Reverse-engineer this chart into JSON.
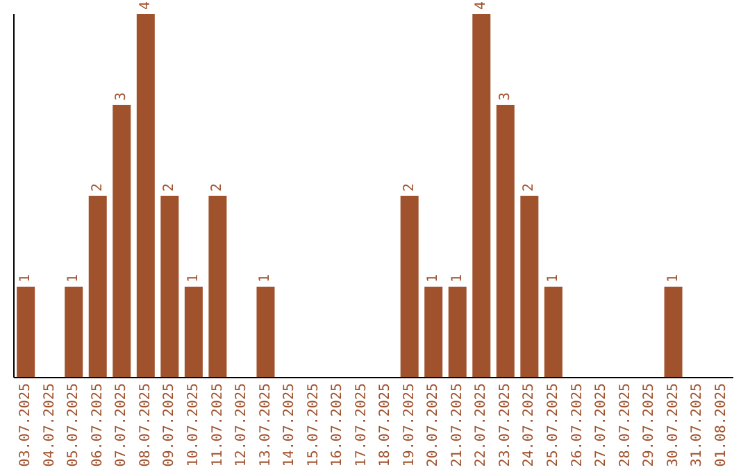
{
  "chart_data": {
    "type": "bar",
    "categories": [
      "03.07.2025",
      "04.07.2025",
      "05.07.2025",
      "06.07.2025",
      "07.07.2025",
      "08.07.2025",
      "09.07.2025",
      "10.07.2025",
      "11.07.2025",
      "12.07.2025",
      "13.07.2025",
      "14.07.2025",
      "15.07.2025",
      "16.07.2025",
      "17.07.2025",
      "18.07.2025",
      "19.07.2025",
      "20.07.2025",
      "21.07.2025",
      "22.07.2025",
      "23.07.2025",
      "24.07.2025",
      "25.07.2025",
      "26.07.2025",
      "27.07.2025",
      "28.07.2025",
      "29.07.2025",
      "30.07.2025",
      "31.07.2025",
      "01.08.2025"
    ],
    "values": [
      1,
      0,
      1,
      2,
      3,
      4,
      2,
      1,
      2,
      0,
      1,
      0,
      0,
      0,
      0,
      0,
      2,
      1,
      1,
      4,
      3,
      2,
      1,
      0,
      0,
      0,
      0,
      1,
      0,
      0
    ],
    "value_labels": [
      "1",
      null,
      "1",
      "2",
      "3",
      "4",
      "2",
      "1",
      "2",
      null,
      "1",
      null,
      null,
      null,
      null,
      null,
      "2",
      "1",
      "1",
      "4",
      "3",
      "2",
      "1",
      null,
      null,
      null,
      null,
      "1",
      null,
      null
    ],
    "color": "#a0522d",
    "ylim": [
      0,
      4
    ],
    "tick_labels": "x"
  }
}
